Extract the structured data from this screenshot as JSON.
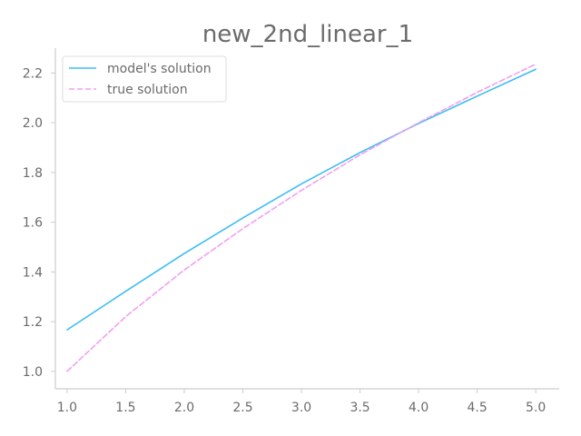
{
  "chart_data": {
    "type": "line",
    "title": "new_2nd_linear_1",
    "xlabel": "",
    "ylabel": "",
    "xlim": [
      0.9,
      5.2
    ],
    "ylim": [
      0.93,
      2.3
    ],
    "xticks": [
      1.0,
      1.5,
      2.0,
      2.5,
      3.0,
      3.5,
      4.0,
      4.5,
      5.0
    ],
    "xtick_labels": [
      "1.0",
      "1.5",
      "2.0",
      "2.5",
      "3.0",
      "3.5",
      "4.0",
      "4.5",
      "5.0"
    ],
    "yticks": [
      1.0,
      1.2,
      1.4,
      1.6,
      1.8,
      2.0,
      2.2
    ],
    "ytick_labels": [
      "1.0",
      "1.2",
      "1.4",
      "1.6",
      "1.8",
      "2.0",
      "2.2"
    ],
    "grid": false,
    "legend_position": "top-left",
    "x": [
      1.0,
      1.5,
      2.0,
      2.5,
      3.0,
      3.5,
      4.0,
      4.5,
      5.0
    ],
    "series": [
      {
        "name": "model's solution",
        "color": "#3dbdf2",
        "style": "solid",
        "values": [
          1.167,
          1.322,
          1.474,
          1.617,
          1.754,
          1.88,
          1.997,
          2.107,
          2.215
        ]
      },
      {
        "name": "true solution",
        "color": "#f0a0f0",
        "style": "dashed",
        "values": [
          1.0,
          1.22,
          1.408,
          1.574,
          1.728,
          1.871,
          2.0,
          2.122,
          2.236
        ]
      }
    ]
  }
}
